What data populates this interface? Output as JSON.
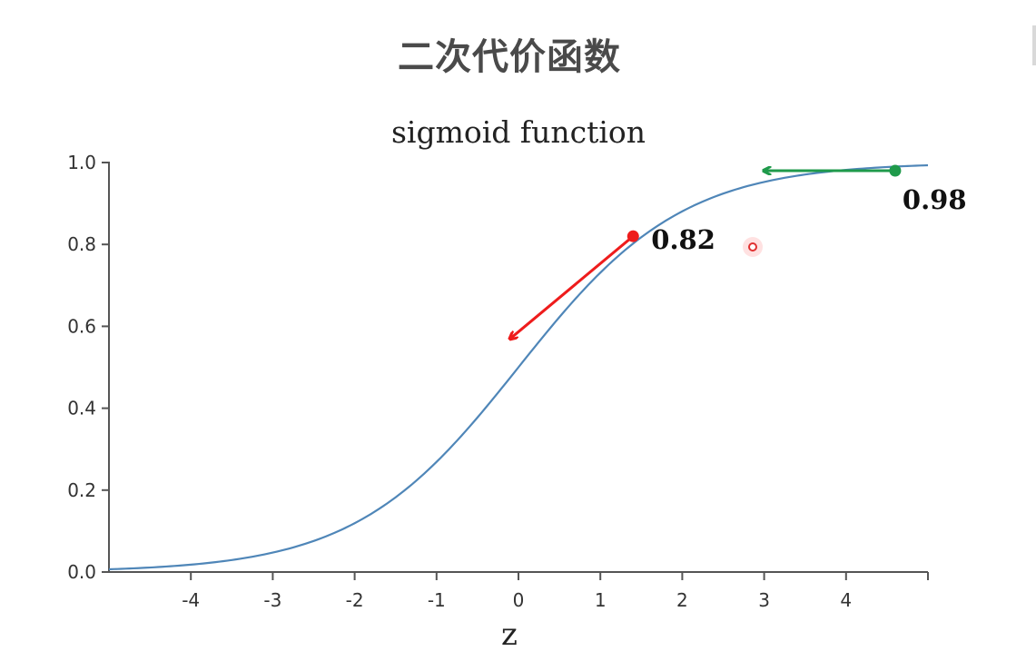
{
  "slide": {
    "title": "二次代价函数"
  },
  "chart_data": {
    "type": "line",
    "title": "sigmoid function",
    "xlabel": "z",
    "ylabel": "",
    "xlim": [
      -5,
      5
    ],
    "ylim": [
      0,
      1
    ],
    "x_ticks": [
      -4,
      -3,
      -2,
      -1,
      0,
      1,
      2,
      3,
      4
    ],
    "x_tick_labels": [
      "-4",
      "-3",
      "-2",
      "-1",
      "0",
      "1",
      "2",
      "3",
      "4"
    ],
    "y_ticks": [
      0,
      0.2,
      0.4,
      0.6,
      0.8,
      1.0
    ],
    "y_tick_labels": [
      "0.0",
      "0.2",
      "0.4",
      "0.6",
      "0.8",
      "1.0"
    ],
    "grid": false,
    "series": [
      {
        "function": "sigmoid",
        "x_start": -5,
        "x_end": 5,
        "color": "#4f86b8"
      }
    ],
    "highlights": [
      {
        "x": 1.4,
        "y": 0.82,
        "label": "0.82",
        "color": "#ee1c1c",
        "arrow_to": {
          "x": -0.1,
          "y": 0.57
        }
      },
      {
        "x": 4.6,
        "y": 0.98,
        "label": "0.98",
        "color": "#1f9a4b",
        "arrow_to": {
          "x": 3.0,
          "y": 0.98
        }
      }
    ]
  }
}
